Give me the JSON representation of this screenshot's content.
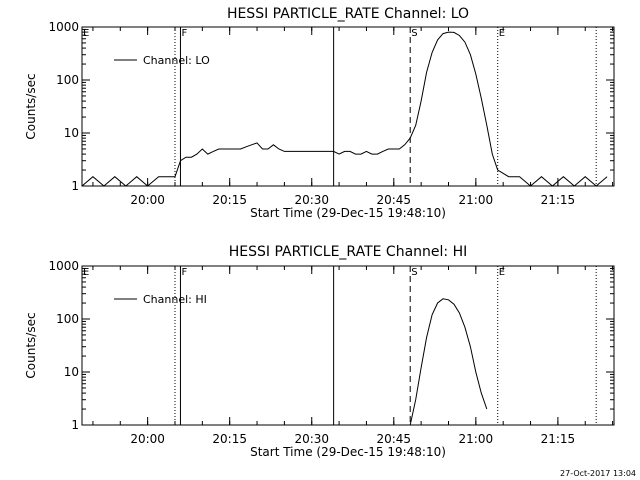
{
  "footer": {
    "timestamp": "27-Oct-2017 13:04"
  },
  "chart_data": [
    {
      "type": "line",
      "title": "HESSI PARTICLE_RATE Channel: LO",
      "xlabel": "Start Time (29-Dec-15 19:48:10)",
      "ylabel": "Counts/sec",
      "yscale": "log",
      "ylim": [
        1,
        1000
      ],
      "y_ticks": [
        1,
        10,
        100,
        1000
      ],
      "y_tick_labels": [
        "1",
        "10",
        "100",
        "1000"
      ],
      "x_ticks": [
        "20:00",
        "20:15",
        "20:30",
        "20:45",
        "21:00",
        "21:15"
      ],
      "legend": {
        "label": "Channel: LO",
        "placement": "top-left"
      },
      "markers": [
        {
          "label": "E",
          "time": "19:48",
          "style": "dotted"
        },
        {
          "label": "",
          "time": "20:05",
          "style": "dotted"
        },
        {
          "label": "F",
          "time": "20:06",
          "style": "solid"
        },
        {
          "label": "",
          "time": "20:34",
          "style": "solid"
        },
        {
          "label": "S",
          "time": "20:48",
          "style": "dashed"
        },
        {
          "label": "E",
          "time": "21:04",
          "style": "dotted"
        },
        {
          "label": "",
          "time": "21:22",
          "style": "dotted"
        }
      ],
      "series": [
        {
          "x": [
            "19:48",
            "19:50",
            "19:52",
            "19:54",
            "19:56",
            "19:58",
            "20:00",
            "20:02",
            "20:04",
            "20:05",
            "20:06",
            "20:07",
            "20:08",
            "20:09",
            "20:10",
            "20:11",
            "20:12",
            "20:13",
            "20:14",
            "20:15",
            "20:16",
            "20:17",
            "20:18",
            "20:19",
            "20:20",
            "20:21",
            "20:22",
            "20:23",
            "20:24",
            "20:25",
            "20:26",
            "20:27",
            "20:28",
            "20:29",
            "20:30",
            "20:31",
            "20:32",
            "20:33",
            "20:34",
            "20:35",
            "20:36",
            "20:37",
            "20:38",
            "20:39",
            "20:40",
            "20:41",
            "20:42",
            "20:43",
            "20:44",
            "20:45",
            "20:46",
            "20:47",
            "20:48",
            "20:49",
            "20:50",
            "20:51",
            "20:52",
            "20:53",
            "20:54",
            "20:55",
            "20:56",
            "20:57",
            "20:58",
            "20:59",
            "21:00",
            "21:01",
            "21:02",
            "21:03",
            "21:04",
            "21:06",
            "21:08",
            "21:10",
            "21:12",
            "21:14",
            "21:16",
            "21:18",
            "21:20",
            "21:22",
            "21:24"
          ],
          "y": [
            1,
            1.5,
            1,
            1.5,
            1,
            1.5,
            1,
            1.5,
            1.5,
            1.5,
            3,
            3.5,
            3.5,
            4,
            5,
            4,
            4.5,
            5,
            5,
            5,
            5,
            5,
            5.5,
            6,
            6.5,
            5,
            5,
            6,
            5,
            4.5,
            4.5,
            4.5,
            4.5,
            4.5,
            4.5,
            4.5,
            4.5,
            4.5,
            4.5,
            4,
            4.5,
            4.5,
            4,
            4,
            4.5,
            4,
            4,
            4.5,
            5,
            5,
            5,
            6,
            8,
            14,
            40,
            140,
            330,
            570,
            750,
            800,
            790,
            690,
            520,
            300,
            130,
            45,
            14,
            4,
            2,
            1.5,
            1.5,
            1,
            1.5,
            1,
            1.5,
            1,
            1.5,
            1,
            1.5
          ]
        }
      ]
    },
    {
      "type": "line",
      "title": "HESSI PARTICLE_RATE Channel: HI",
      "xlabel": "Start Time (29-Dec-15 19:48:10)",
      "ylabel": "Counts/sec",
      "yscale": "log",
      "ylim": [
        1,
        1000
      ],
      "y_ticks": [
        1,
        10,
        100,
        1000
      ],
      "y_tick_labels": [
        "1",
        "10",
        "100",
        "1000"
      ],
      "x_ticks": [
        "20:00",
        "20:15",
        "20:30",
        "20:45",
        "21:00",
        "21:15"
      ],
      "legend": {
        "label": "Channel: HI",
        "placement": "top-left"
      },
      "markers": [
        {
          "label": "E",
          "time": "19:48",
          "style": "dotted"
        },
        {
          "label": "",
          "time": "20:05",
          "style": "dotted"
        },
        {
          "label": "F",
          "time": "20:06",
          "style": "solid"
        },
        {
          "label": "",
          "time": "20:34",
          "style": "solid"
        },
        {
          "label": "S",
          "time": "20:48",
          "style": "dashed"
        },
        {
          "label": "E",
          "time": "21:04",
          "style": "dotted"
        },
        {
          "label": "",
          "time": "21:22",
          "style": "dotted"
        }
      ],
      "series": [
        {
          "x": [
            "20:48",
            "20:49",
            "20:50",
            "20:51",
            "20:52",
            "20:53",
            "20:54",
            "20:55",
            "20:56",
            "20:57",
            "20:58",
            "20:59",
            "21:00",
            "21:01",
            "21:02"
          ],
          "y": [
            1,
            3,
            12,
            45,
            120,
            200,
            240,
            230,
            190,
            130,
            70,
            30,
            10,
            4,
            2
          ]
        }
      ]
    }
  ]
}
